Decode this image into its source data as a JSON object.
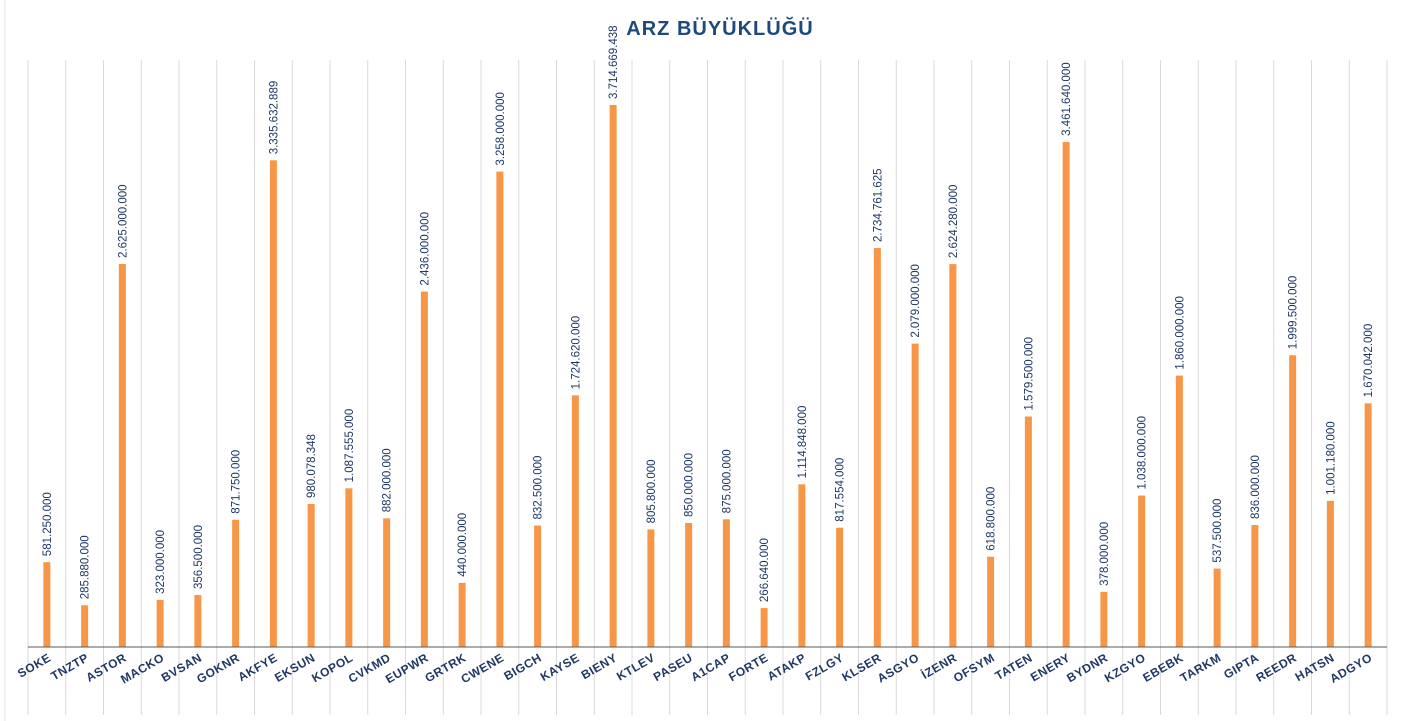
{
  "chart_data": {
    "type": "bar",
    "title": "ARZ BÜYÜKLÜĞÜ",
    "xlabel": "",
    "ylabel": "",
    "categories": [
      "SOKE",
      "TNZTP",
      "ASTOR",
      "MACKO",
      "BVSAN",
      "GOKNR",
      "AKFYE",
      "EKSUN",
      "KOPOL",
      "CVKMD",
      "EUPWR",
      "GRTRK",
      "CWENE",
      "BIGCH",
      "KAYSE",
      "BIENY",
      "KTLEV",
      "PASEU",
      "A1CAP",
      "FORTE",
      "ATAKP",
      "FZLGY",
      "KLSER",
      "ASGYO",
      "İZENR",
      "OFSYM",
      "TATEN",
      "ENERY",
      "BYDNR",
      "KZGYO",
      "EBEBK",
      "TARKM",
      "GIPTA",
      "REEDR",
      "HATSN",
      "ADGYO"
    ],
    "values": [
      581250000,
      285880000,
      2625000000,
      323000000,
      356500000,
      871750000,
      3335632889,
      980078348,
      1087555000,
      882000000,
      2436000000,
      440000000,
      3258000000,
      832500000,
      1724620000,
      3714669438,
      805800000,
      850000000,
      875000000,
      266640000,
      1114848000,
      817554000,
      2734761625,
      2079000000,
      2624280000,
      618800000,
      1579500000,
      3461640000,
      378000000,
      1038000000,
      1860000000,
      537500000,
      836000000,
      1999500000,
      1001180000,
      1670042000
    ],
    "data_labels": [
      "581.250.000",
      "285.880.000",
      "2.625.000.000",
      "323.000.000",
      "356.500.000",
      "871.750.000",
      "3.335.632.889",
      "980.078.348",
      "1.087.555.000",
      "882.000.000",
      "2.436.000.000",
      "440.000.000",
      "3.258.000.000",
      "832.500.000",
      "1.724.620.000",
      "3.714.669.438",
      "805.800.000",
      "850.000.000",
      "875.000.000",
      "266.640.000",
      "1.114.848.000",
      "817.554.000",
      "2.734.761.625",
      "2.079.000.000",
      "2.624.280.000",
      "618.800.000",
      "1.579.500.000",
      "3.461.640.000",
      "378.000.000",
      "1.038.000.000",
      "1.860.000.000",
      "537.500.000",
      "836.000.000",
      "1.999.500.000",
      "1.001.180.000",
      "1.670.042.000"
    ],
    "ylim": [
      0,
      4000000000
    ],
    "grid": "vertical",
    "legend": "none",
    "colors": {
      "bar": "#F79646",
      "title": "#1F497D",
      "labels": "#1F3864",
      "grid": "#D9D9D9",
      "axis": "#595959"
    }
  }
}
